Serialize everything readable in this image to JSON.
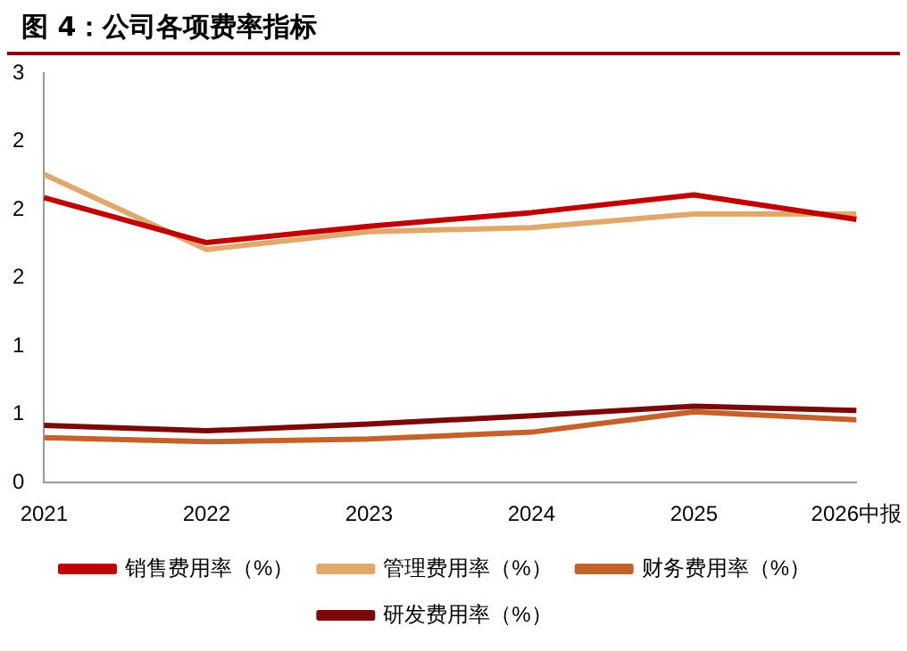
{
  "chart_data": {
    "type": "line",
    "title": "图 4：公司各项费率指标",
    "categories": [
      "2021",
      "2022",
      "2023",
      "2024",
      "2025",
      "2026中报"
    ],
    "series": [
      {
        "name": "销售费用率（%）",
        "color": "#c00000",
        "values": [
          2.09,
          1.76,
          1.88,
          1.98,
          2.11,
          1.93
        ]
      },
      {
        "name": "管理费用率（%）",
        "color": "#e0a86a",
        "values": [
          2.26,
          1.71,
          1.84,
          1.87,
          1.97,
          1.97
        ]
      },
      {
        "name": "财务费用率（%）",
        "color": "#c3622b",
        "values": [
          0.33,
          0.3,
          0.32,
          0.37,
          0.52,
          0.46
        ]
      },
      {
        "name": "研发费用率（%）",
        "color": "#7a0a0a",
        "values": [
          0.42,
          0.38,
          0.43,
          0.49,
          0.56,
          0.53
        ]
      }
    ],
    "ylim": [
      0,
      3
    ],
    "yticks": [
      0,
      {
        "value": 0.5,
        "label": "1"
      },
      1,
      {
        "value": 1.5,
        "label": "2"
      },
      2,
      {
        "value": 2.5,
        "label": "2"
      },
      3
    ],
    "grid": false,
    "legend": "bottom",
    "marker": "none",
    "line_style": "solid"
  }
}
